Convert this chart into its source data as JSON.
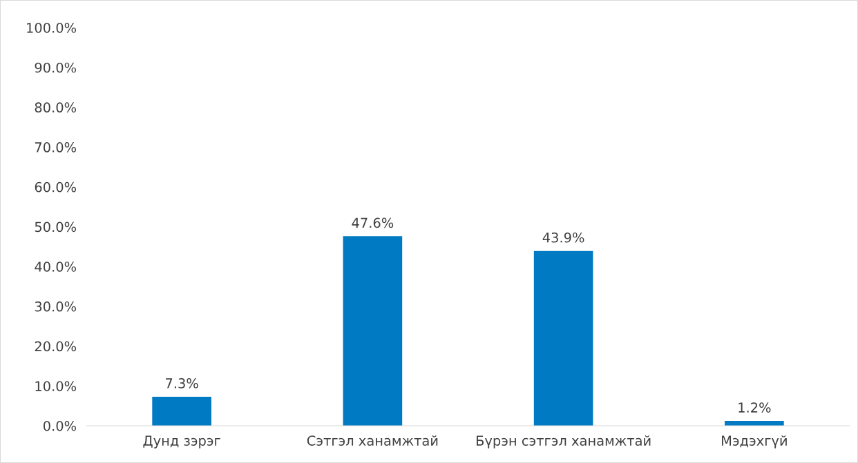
{
  "chart_data": {
    "type": "bar",
    "categories": [
      "Дунд зэрэг",
      "Сэтгэл ханамжтай",
      "Бүрэн сэтгэл ханамжтай",
      "Мэдэхгүй"
    ],
    "values": [
      7.3,
      47.6,
      43.9,
      1.2
    ],
    "value_labels": [
      "7.3%",
      "47.6%",
      "43.9%",
      "1.2%"
    ],
    "color": "#007ac2",
    "ylim": [
      0,
      100
    ],
    "yticks": [
      {
        "value": 0,
        "label": "0.0%"
      },
      {
        "value": 10,
        "label": "10.0%"
      },
      {
        "value": 20,
        "label": "20.0%"
      },
      {
        "value": 30,
        "label": "30.0%"
      },
      {
        "value": 40,
        "label": "40.0%"
      },
      {
        "value": 50,
        "label": "50.0%"
      },
      {
        "value": 60,
        "label": "60.0%"
      },
      {
        "value": 70,
        "label": "70.0%"
      },
      {
        "value": 80,
        "label": "80.0%"
      },
      {
        "value": 90,
        "label": "90.0%"
      },
      {
        "value": 100,
        "label": "100.0%"
      }
    ],
    "grid": false,
    "legend": false
  }
}
